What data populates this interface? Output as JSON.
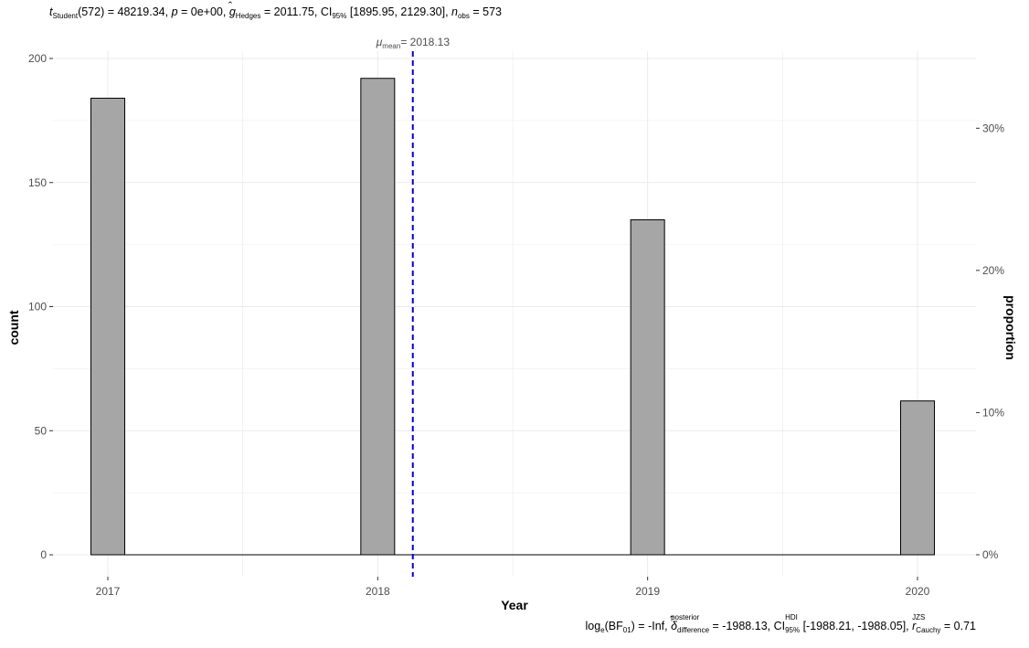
{
  "chart_data": {
    "type": "bar",
    "categories": [
      "2017",
      "2018",
      "2019",
      "2020"
    ],
    "values": [
      184,
      192,
      135,
      62
    ],
    "xlabel": "Year",
    "ylabel": "count",
    "ylabel_right": "proportion",
    "ylim": [
      0,
      200
    ],
    "y_ticks": [
      "0",
      "50",
      "100",
      "150",
      "200"
    ],
    "y_right_ticks": [
      "0%",
      "10%",
      "20%",
      "30%"
    ],
    "y_right_tick_values": [
      0,
      0.1,
      0.2,
      0.3
    ],
    "n_total": 573,
    "grid": true,
    "bar_fill": "#a6a6a6",
    "bar_stroke": "#000000",
    "mean_line": {
      "value": 2018.13,
      "color": "#0000cd",
      "label_symbol": "μ",
      "label_sub": "mean",
      "label_value": "= 2018.13"
    },
    "subtitle": {
      "stat_name": "t",
      "stat_sub": "Student",
      "df_and_value": "(572) = 48219.34, ",
      "p_label": "p",
      "p_value": " = 0e+00, ",
      "g_label": "g",
      "g_sub": "Hedges",
      "g_value": " = 2011.75, CI",
      "ci_sub": "95%",
      "ci_value": " [1895.95, 2129.30], ",
      "n_label": "n",
      "n_sub": "obs",
      "n_value": " = 573"
    },
    "caption": {
      "bf_label": "log",
      "bf_sub": "e",
      "bf_rest": "(BF",
      "bf_sub2": "01",
      "bf_value": ") = -Inf, ",
      "delta_symbol": "δ",
      "delta_sup": "posterior",
      "delta_sub": "difference",
      "delta_value": " = -1988.13, CI",
      "ci_sup": "HDI",
      "ci_sub": "95%",
      "ci_value": " [-1988.21, -1988.05], ",
      "r_label": "r",
      "r_sup": "JZS",
      "r_sub": "Cauchy",
      "r_value": " = 0.71"
    }
  }
}
